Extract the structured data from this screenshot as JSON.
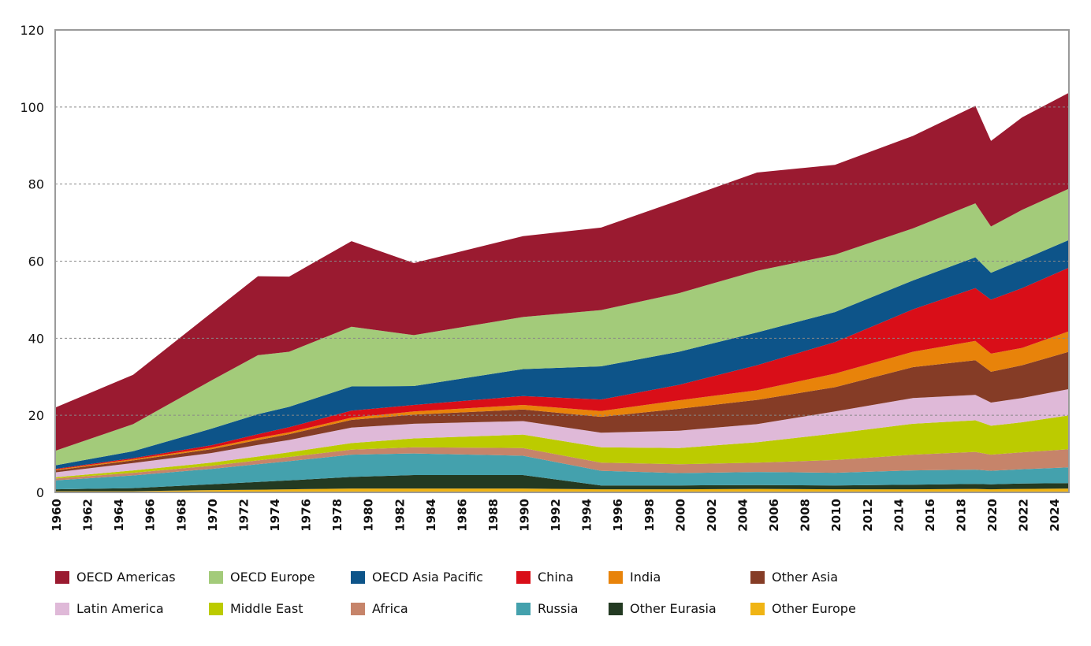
{
  "chart_data": {
    "type": "area",
    "stacked": true,
    "title": "",
    "xlabel": "",
    "ylabel": "",
    "ylim": [
      0,
      120
    ],
    "yticks": [
      0,
      20,
      40,
      60,
      80,
      100,
      120
    ],
    "xlim": [
      1960,
      2025
    ],
    "xticks": [
      1960,
      1962,
      1964,
      1966,
      1968,
      1970,
      1972,
      1974,
      1976,
      1978,
      1980,
      1982,
      1984,
      1986,
      1988,
      1990,
      1992,
      1994,
      1996,
      1998,
      2000,
      2002,
      2004,
      2006,
      2008,
      2010,
      2012,
      2014,
      2016,
      2018,
      2020,
      2022,
      2024
    ],
    "grid": "horizontal dotted",
    "legend_position": "bottom",
    "x": [
      1960,
      1965,
      1970,
      1973,
      1975,
      1979,
      1983,
      1990,
      1995,
      2000,
      2005,
      2010,
      2015,
      2019,
      2020,
      2022,
      2025
    ],
    "series": [
      {
        "name": "Other Europe",
        "color": "#f0b414",
        "values": [
          0.3,
          0.3,
          0.6,
          0.7,
          0.8,
          1.0,
          1.0,
          1.0,
          0.8,
          0.8,
          0.9,
          0.8,
          0.8,
          0.9,
          0.8,
          0.9,
          1.0
        ]
      },
      {
        "name": "Other Eurasia",
        "color": "#233a22",
        "values": [
          0.5,
          0.8,
          1.5,
          2.0,
          2.3,
          3.0,
          3.5,
          3.5,
          1.0,
          1.0,
          1.0,
          1.0,
          1.2,
          1.3,
          1.3,
          1.4,
          1.4
        ]
      },
      {
        "name": "Russia",
        "color": "#44a1ad",
        "values": [
          2.3,
          3.3,
          4.0,
          4.6,
          5.0,
          5.8,
          5.6,
          5.0,
          3.8,
          3.2,
          3.4,
          3.3,
          3.7,
          3.7,
          3.5,
          3.7,
          4.1
        ]
      },
      {
        "name": "Africa",
        "color": "#c6846a",
        "values": [
          0.5,
          0.7,
          0.8,
          1.0,
          1.1,
          1.3,
          1.6,
          2.0,
          2.1,
          2.3,
          2.4,
          3.3,
          4.1,
          4.6,
          4.2,
          4.4,
          4.7
        ]
      },
      {
        "name": "Middle East",
        "color": "#bccb00",
        "values": [
          0.3,
          0.6,
          0.8,
          1.0,
          1.2,
          1.7,
          2.3,
          3.5,
          4.0,
          4.2,
          5.3,
          6.9,
          8.0,
          8.2,
          7.5,
          7.8,
          8.8
        ]
      },
      {
        "name": "Latin America",
        "color": "#dfb9d8",
        "values": [
          1.3,
          1.9,
          2.5,
          3.0,
          3.2,
          4.0,
          3.8,
          3.5,
          3.8,
          4.5,
          4.7,
          5.7,
          6.7,
          6.6,
          6.0,
          6.3,
          6.8
        ]
      },
      {
        "name": "Other Asia",
        "color": "#853c26",
        "values": [
          0.5,
          0.7,
          1.0,
          1.3,
          1.5,
          2.0,
          2.4,
          3.0,
          4.1,
          5.7,
          6.3,
          6.3,
          8.0,
          9.0,
          8.0,
          8.5,
          9.7
        ]
      },
      {
        "name": "India",
        "color": "#e8830a",
        "values": [
          0.2,
          0.3,
          0.4,
          0.5,
          0.5,
          0.6,
          0.8,
          1.2,
          1.5,
          2.2,
          2.5,
          3.5,
          4.0,
          5.0,
          4.7,
          4.5,
          5.3
        ]
      },
      {
        "name": "China",
        "color": "#d90e18",
        "values": [
          0.2,
          0.3,
          0.6,
          1.0,
          1.3,
          1.8,
          1.7,
          2.3,
          3.0,
          4.0,
          6.5,
          8.2,
          11.0,
          13.7,
          14.0,
          15.5,
          16.5
        ]
      },
      {
        "name": "OECD Asia Pacific",
        "color": "#0d5489",
        "values": [
          0.9,
          1.8,
          4.3,
          5.2,
          5.3,
          6.3,
          4.9,
          7.0,
          8.6,
          8.6,
          8.5,
          7.8,
          7.5,
          8.0,
          7.0,
          7.3,
          7.2
        ]
      },
      {
        "name": "OECD Europe",
        "color": "#a3cb7a",
        "values": [
          3.8,
          7.0,
          12.5,
          15.3,
          14.3,
          15.5,
          13.2,
          13.5,
          14.6,
          15.2,
          16.0,
          14.9,
          13.5,
          14.0,
          12.0,
          13.0,
          13.3
        ]
      },
      {
        "name": "OECD Americas",
        "color": "#9a1a30",
        "values": [
          11.2,
          12.8,
          17.5,
          20.5,
          19.5,
          22.2,
          18.7,
          21.0,
          21.4,
          24.1,
          25.5,
          23.3,
          24.0,
          25.3,
          22.2,
          24.0,
          24.9
        ]
      }
    ],
    "legend_order": [
      "OECD Americas",
      "OECD Europe",
      "OECD Asia Pacific",
      "China",
      "India",
      "Other Asia",
      "Latin America",
      "Middle East",
      "Africa",
      "Russia",
      "Other Eurasia",
      "Other Europe"
    ]
  }
}
